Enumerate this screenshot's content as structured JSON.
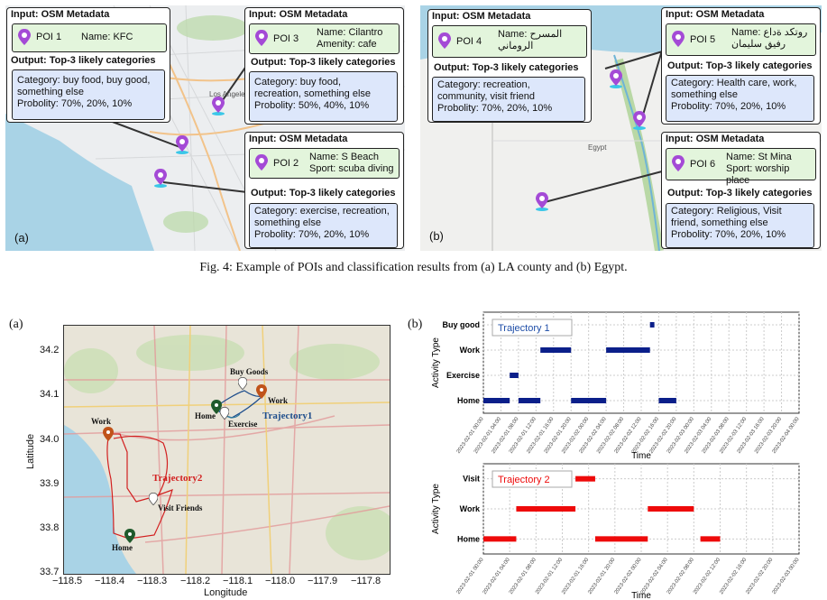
{
  "figure4": {
    "la": {
      "tag": "(a)",
      "box_left": {
        "input_header": "Input: OSM Metadata",
        "poi": "POI 1",
        "name": "Name: KFC",
        "output_header": "Output: Top-3 likely categories",
        "output_lines": [
          "Category: buy food, buy good,",
          "something else",
          "Probolity: 70%, 20%, 10%"
        ]
      },
      "box_poi3": {
        "input_header": "Input: OSM Metadata",
        "poi": "POI 3",
        "name_lines": [
          "Name: Cilantro",
          "Amenity:  cafe"
        ],
        "output_header": "Output: Top-3 likely categories",
        "output_lines": [
          "Category: buy food,",
          "recreation, something else",
          "Probolity: 50%, 40%, 10%"
        ]
      },
      "box_poi2": {
        "input_header": "Input: OSM Metadata",
        "poi": "POI 2",
        "name_lines": [
          "Name: S Beach",
          "Sport: scuba diving"
        ],
        "output_header": "Output: Top-3 likely categories",
        "output_lines": [
          "Category: exercise, recreation,",
          "something else",
          "Probolity: 70%, 20%, 10%"
        ]
      },
      "map_label": "Los Angeles"
    },
    "egypt": {
      "tag": "(b)",
      "box_poi4": {
        "input_header": "Input: OSM Metadata",
        "poi": "POI 4",
        "name_lines": [
          "Name: المسرح",
          "الروماني"
        ],
        "output_header": "Output: Top-3 likely categories",
        "output_lines": [
          "Category: recreation,",
          "community, visit friend",
          "Probolity: 70%, 20%, 10%"
        ]
      },
      "box_poi5": {
        "input_header": "Input: OSM Metadata",
        "poi": "POI 5",
        "name_lines": [
          "Name: روتكد ةداع",
          "رفيق سليمان"
        ],
        "output_header": "Output: Top-3 likely categories",
        "output_lines": [
          "Category: Health care, work,",
          "something else",
          "Probolity: 70%, 20%, 10%"
        ]
      },
      "box_poi6": {
        "input_header": "Input: OSM Metadata",
        "poi": "POI 6",
        "name_lines": [
          "Name: St Mina",
          "Sport: worship place"
        ],
        "output_header": "Output: Top-3 likely categories",
        "output_lines": [
          "Category: Religious, Visit",
          "friend, something else",
          "Probolity: 70%, 20%, 10%"
        ]
      },
      "map_label": "Egypt"
    },
    "caption": "Fig. 4: Example of POIs and classification results from (a) LA county and (b) Egypt."
  },
  "figure5": {
    "a": {
      "tag": "(a)",
      "xlabel": "Longitude",
      "ylabel": "Latitude",
      "xticks": [
        "−118.5",
        "−118.4",
        "−118.3",
        "−118.2",
        "−118.1",
        "−118.0",
        "−117.9",
        "−117.8"
      ],
      "yticks": [
        "34.2",
        "34.1",
        "34.0",
        "33.9",
        "33.8",
        "33.7"
      ],
      "labels": {
        "buy_goods": "Buy Goods",
        "work1": "Work",
        "home1": "Home",
        "exercise": "Exercise",
        "traj1": "Trajectory1",
        "work2": "Work",
        "traj2": "Trajectory2",
        "visit": "Visit Friends",
        "home2": "Home"
      },
      "colors": {
        "traj1": "#1f4e8c",
        "traj2": "#d22020",
        "work_pin": "#c0531a",
        "home_pin": "#1f5a2b"
      }
    },
    "b_tag": "(b)"
  },
  "chart_data": [
    {
      "type": "gantt",
      "title": "Trajectory 1",
      "xlabel": "Time",
      "ylabel": "Activity Type",
      "categories": [
        "Home",
        "Exercise",
        "Work",
        "Buy good"
      ],
      "x_ticks": [
        "2023-02-01 00:00",
        "2023-02-01 04:00",
        "2023-02-01 08:00",
        "2023-02-01 12:00",
        "2023-02-01 16:00",
        "2023-02-01 20:00",
        "2023-02-02 00:00",
        "2023-02-02 04:00",
        "2023-02-02 08:00",
        "2023-02-02 12:00",
        "2023-02-02 16:00",
        "2023-02-02 20:00",
        "2023-02-03 00:00",
        "2023-02-03 04:00",
        "2023-02-03 08:00",
        "2023-02-03 12:00",
        "2023-02-03 16:00",
        "2023-02-03 20:00",
        "2023-02-04 00:00"
      ],
      "xlim": [
        "2023-02-01 00:00",
        "2023-02-04 00:00"
      ],
      "segments": [
        {
          "activity": "Home",
          "start": "2023-02-01 00:00",
          "end": "2023-02-01 06:00"
        },
        {
          "activity": "Exercise",
          "start": "2023-02-01 06:00",
          "end": "2023-02-01 08:00"
        },
        {
          "activity": "Home",
          "start": "2023-02-01 08:00",
          "end": "2023-02-01 13:00"
        },
        {
          "activity": "Work",
          "start": "2023-02-01 13:00",
          "end": "2023-02-01 20:00"
        },
        {
          "activity": "Home",
          "start": "2023-02-01 20:00",
          "end": "2023-02-02 04:00"
        },
        {
          "activity": "Work",
          "start": "2023-02-02 04:00",
          "end": "2023-02-02 14:00"
        },
        {
          "activity": "Buy good",
          "start": "2023-02-02 14:00",
          "end": "2023-02-02 15:00"
        },
        {
          "activity": "Home",
          "start": "2023-02-02 16:00",
          "end": "2023-02-02 20:00"
        }
      ],
      "color": "#0b1f8a"
    },
    {
      "type": "gantt",
      "title": "Trajectory 2",
      "xlabel": "Time",
      "ylabel": "Activity Type",
      "categories": [
        "Home",
        "Work",
        "Visit"
      ],
      "x_ticks": [
        "2023-02-01 00:00",
        "2023-02-01 04:00",
        "2023-02-01 08:00",
        "2023-02-01 12:00",
        "2023-02-01 16:00",
        "2023-02-01 20:00",
        "2023-02-02 00:00",
        "2023-02-02 04:00",
        "2023-02-02 08:00",
        "2023-02-02 12:00",
        "2023-02-02 16:00",
        "2023-02-02 20:00",
        "2023-02-03 00:00"
      ],
      "xlim": [
        "2023-02-01 00:00",
        "2023-02-03 00:00"
      ],
      "segments": [
        {
          "activity": "Home",
          "start": "2023-02-01 00:00",
          "end": "2023-02-01 05:00"
        },
        {
          "activity": "Work",
          "start": "2023-02-01 05:00",
          "end": "2023-02-01 14:00"
        },
        {
          "activity": "Visit",
          "start": "2023-02-01 14:00",
          "end": "2023-02-01 17:00"
        },
        {
          "activity": "Home",
          "start": "2023-02-01 17:00",
          "end": "2023-02-02 01:00"
        },
        {
          "activity": "Work",
          "start": "2023-02-02 01:00",
          "end": "2023-02-02 08:00"
        },
        {
          "activity": "Home",
          "start": "2023-02-02 09:00",
          "end": "2023-02-02 12:00"
        }
      ],
      "color": "#ee0a0a"
    }
  ]
}
